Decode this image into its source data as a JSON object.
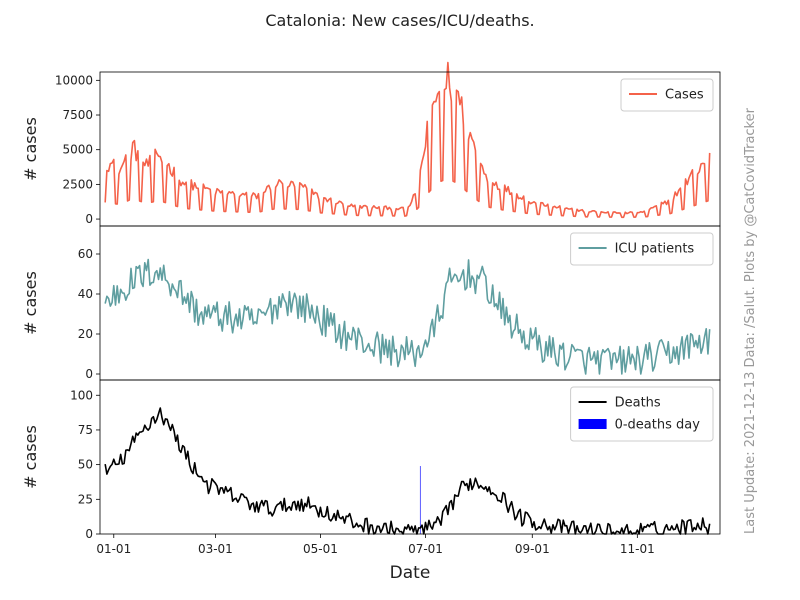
{
  "chart_data": {
    "type": "line",
    "title": "Catalonia: New cases/ICU/deaths.",
    "xlabel": "Date",
    "x_range": [
      "2020-12-24",
      "2021-12-19"
    ],
    "x_ticks": [
      {
        "date": "2021-01-01",
        "label": "01-01"
      },
      {
        "date": "2021-03-01",
        "label": "03-01"
      },
      {
        "date": "2021-05-01",
        "label": "05-01"
      },
      {
        "date": "2021-07-01",
        "label": "07-01"
      },
      {
        "date": "2021-09-01",
        "label": "09-01"
      },
      {
        "date": "2021-11-01",
        "label": "11-01"
      }
    ],
    "side_note": "Last Update: 2021-12-13 Data: /Salut.   Plots by @CatCovidTracker",
    "panels": [
      {
        "id": "cases",
        "ylabel": "# cases",
        "ylim": [
          -500,
          10600
        ],
        "yticks": [
          0,
          2500,
          5000,
          7500,
          10000
        ],
        "legend_position": "top-right",
        "series": [
          {
            "name": "Cases",
            "color": "#f4624a",
            "weekly_dip": 0.3,
            "start_date": "2020-12-27",
            "keyframes": [
              [
                "2020-12-27",
                4000
              ],
              [
                "2021-01-05",
                3500
              ],
              [
                "2021-01-12",
                5000
              ],
              [
                "2021-01-20",
                3700
              ],
              [
                "2021-01-27",
                4500
              ],
              [
                "2021-02-10",
                2600
              ],
              [
                "2021-03-01",
                1900
              ],
              [
                "2021-03-25",
                1600
              ],
              [
                "2021-04-05",
                2500
              ],
              [
                "2021-04-20",
                2300
              ],
              [
                "2021-05-01",
                1500
              ],
              [
                "2021-05-20",
                900
              ],
              [
                "2021-06-15",
                750
              ],
              [
                "2021-06-19",
                700
              ],
              [
                "2021-06-23",
                1100
              ],
              [
                "2021-06-28",
                3200
              ],
              [
                "2021-07-02",
                6000
              ],
              [
                "2021-07-08",
                8800
              ],
              [
                "2021-07-14",
                9700
              ],
              [
                "2021-07-20",
                8500
              ],
              [
                "2021-07-28",
                5500
              ],
              [
                "2021-08-05",
                3000
              ],
              [
                "2021-08-15",
                2200
              ],
              [
                "2021-09-01",
                1200
              ],
              [
                "2021-10-01",
                550
              ],
              [
                "2021-10-25",
                420
              ],
              [
                "2021-11-05",
                500
              ],
              [
                "2021-11-20",
                1300
              ],
              [
                "2021-12-01",
                2800
              ],
              [
                "2021-12-13",
                4500
              ]
            ]
          }
        ]
      },
      {
        "id": "icu",
        "ylabel": "# cases",
        "ylim": [
          -3,
          74
        ],
        "yticks": [
          0,
          20,
          40,
          60
        ],
        "legend_position": "top-right",
        "series": [
          {
            "name": "ICU patients",
            "color": "#5f9ea0",
            "noise": 8,
            "start_date": "2020-12-27",
            "keyframes": [
              [
                "2020-12-27",
                35
              ],
              [
                "2021-01-05",
                42
              ],
              [
                "2021-01-15",
                48
              ],
              [
                "2021-01-25",
                52
              ],
              [
                "2021-02-05",
                45
              ],
              [
                "2021-02-20",
                30
              ],
              [
                "2021-03-10",
                28
              ],
              [
                "2021-03-25",
                26
              ],
              [
                "2021-04-10",
                38
              ],
              [
                "2021-04-25",
                32
              ],
              [
                "2021-05-10",
                22
              ],
              [
                "2021-05-25",
                16
              ],
              [
                "2021-06-10",
                12
              ],
              [
                "2021-06-25",
                10
              ],
              [
                "2021-07-05",
                20
              ],
              [
                "2021-07-15",
                45
              ],
              [
                "2021-07-25",
                50
              ],
              [
                "2021-08-05",
                45
              ],
              [
                "2021-08-15",
                30
              ],
              [
                "2021-08-25",
                20
              ],
              [
                "2021-09-10",
                12
              ],
              [
                "2021-10-01",
                7
              ],
              [
                "2021-10-20",
                6
              ],
              [
                "2021-11-10",
                8
              ],
              [
                "2021-11-25",
                12
              ],
              [
                "2021-12-13",
                18
              ]
            ]
          }
        ]
      },
      {
        "id": "deaths",
        "ylabel": "# cases",
        "ylim": [
          0,
          111
        ],
        "yticks": [
          0,
          25,
          50,
          75,
          100
        ],
        "legend_position": "top-right",
        "series": [
          {
            "name": "Deaths",
            "color": "#000000",
            "noise": 6,
            "start_date": "2020-12-27",
            "keyframes": [
              [
                "2020-12-27",
                45
              ],
              [
                "2021-01-05",
                52
              ],
              [
                "2021-01-12",
                65
              ],
              [
                "2021-01-20",
                78
              ],
              [
                "2021-01-28",
                88
              ],
              [
                "2021-02-05",
                72
              ],
              [
                "2021-02-15",
                50
              ],
              [
                "2021-02-25",
                35
              ],
              [
                "2021-03-10",
                28
              ],
              [
                "2021-03-25",
                20
              ],
              [
                "2021-04-05",
                18
              ],
              [
                "2021-04-20",
                23
              ],
              [
                "2021-05-05",
                15
              ],
              [
                "2021-05-20",
                8
              ],
              [
                "2021-06-05",
                4
              ],
              [
                "2021-06-20",
                2
              ],
              [
                "2021-07-01",
                3
              ],
              [
                "2021-07-10",
                8
              ],
              [
                "2021-07-20",
                30
              ],
              [
                "2021-07-28",
                38
              ],
              [
                "2021-08-10",
                32
              ],
              [
                "2021-08-25",
                12
              ],
              [
                "2021-09-05",
                8
              ],
              [
                "2021-09-20",
                4
              ],
              [
                "2021-10-10",
                2
              ],
              [
                "2021-11-01",
                2
              ],
              [
                "2021-11-20",
                4
              ],
              [
                "2021-12-01",
                6
              ],
              [
                "2021-12-10",
                9
              ],
              [
                "2021-12-13",
                3
              ]
            ]
          }
        ],
        "zero_death_days": {
          "label": "0-deaths day",
          "color": "#0000ff",
          "dates": [
            "2021-06-28"
          ]
        }
      }
    ]
  }
}
